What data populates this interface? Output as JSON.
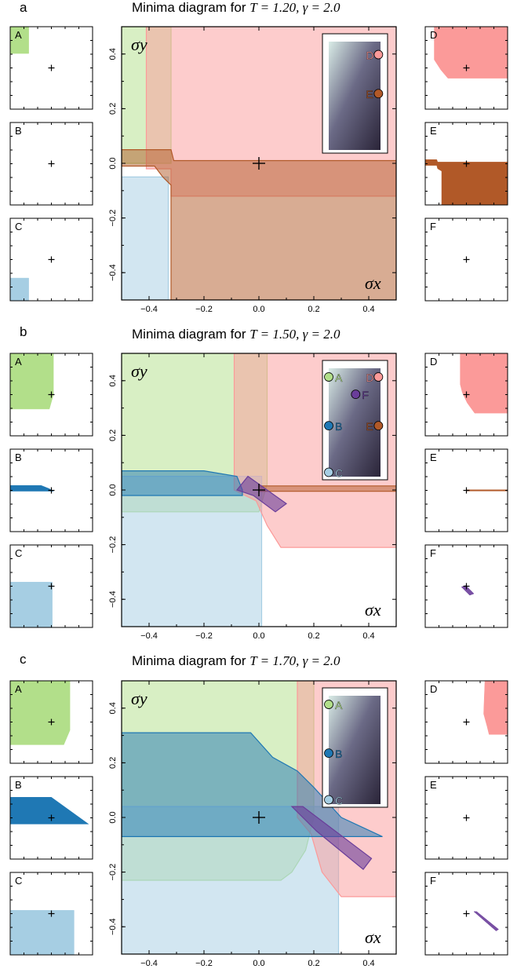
{
  "figure": {
    "colors": {
      "A": "#b2df8a",
      "B": "#1f78b4",
      "C": "#a6cee3",
      "D": "#fb9a99",
      "E": "#b15928",
      "F": "#6a3d9a"
    }
  },
  "chart_data": [
    {
      "panel": "a",
      "type": "area",
      "title_prefix": "Minima diagram for ",
      "title_math": "T = 1.20, γ = 2.0",
      "xlabel": "σx",
      "ylabel": "σy",
      "xlim": [
        -0.5,
        0.5
      ],
      "ylim": [
        -0.5,
        0.5
      ],
      "xticks": [
        -0.4,
        -0.2,
        0.0,
        0.2,
        0.4
      ],
      "yticks": [
        -0.4,
        -0.2,
        0.0,
        0.2,
        0.4
      ],
      "xtick_labels": [
        "−0.4",
        "−0.2",
        "0.0",
        "0.2",
        "0.4"
      ],
      "ytick_labels": [
        "−0.4",
        "−0.2",
        "0.0",
        "0.2",
        "0.4"
      ],
      "origin_marker": [
        0.0,
        0.0
      ],
      "regions": [
        {
          "label": "A",
          "polygon": [
            [
              -0.5,
              0.5
            ],
            [
              -0.32,
              0.5
            ],
            [
              -0.32,
              0.0
            ],
            [
              -0.5,
              0.0
            ]
          ]
        },
        {
          "label": "C",
          "polygon": [
            [
              -0.5,
              -0.5
            ],
            [
              -0.33,
              -0.5
            ],
            [
              -0.33,
              -0.05
            ],
            [
              -0.5,
              -0.05
            ]
          ]
        },
        {
          "label": "D",
          "polygon": [
            [
              -0.41,
              0.5
            ],
            [
              0.5,
              0.5
            ],
            [
              0.5,
              -0.12
            ],
            [
              -0.32,
              -0.12
            ],
            [
              -0.32,
              -0.02
            ],
            [
              -0.41,
              -0.02
            ]
          ]
        },
        {
          "label": "E",
          "polygon": [
            [
              -0.5,
              0.05
            ],
            [
              -0.32,
              0.05
            ],
            [
              -0.31,
              0.01
            ],
            [
              0.5,
              0.01
            ],
            [
              0.5,
              -0.5
            ],
            [
              -0.32,
              -0.5
            ],
            [
              -0.32,
              -0.08
            ],
            [
              -0.35,
              -0.05
            ],
            [
              -0.38,
              -0.01
            ],
            [
              -0.5,
              -0.01
            ]
          ]
        }
      ],
      "inset_markers": [
        {
          "label": "D",
          "pos": [
            0.96,
            0.88
          ]
        },
        {
          "label": "E",
          "pos": [
            0.96,
            0.52
          ]
        }
      ],
      "small_panels": [
        {
          "label": "A",
          "polygons": [
            [
              [
                -1,
                1
              ],
              [
                -0.55,
                1
              ],
              [
                -0.55,
                0.35
              ],
              [
                -1,
                0.35
              ]
            ]
          ]
        },
        {
          "label": "B",
          "polygons": []
        },
        {
          "label": "C",
          "polygons": [
            [
              [
                -1,
                -1
              ],
              [
                -0.55,
                -1
              ],
              [
                -0.55,
                -0.45
              ],
              [
                -1,
                -0.45
              ]
            ]
          ]
        },
        {
          "label": "D",
          "polygons": [
            [
              [
                -0.78,
                1
              ],
              [
                1,
                1
              ],
              [
                1,
                -0.25
              ],
              [
                -0.45,
                -0.25
              ],
              [
                -0.62,
                -0.05
              ],
              [
                -0.78,
                0.2
              ]
            ]
          ]
        },
        {
          "label": "E",
          "polygons": [
            [
              [
                -1,
                0.1
              ],
              [
                -0.72,
                0.1
              ],
              [
                -0.7,
                0.04
              ],
              [
                1,
                0.04
              ],
              [
                1,
                -1
              ],
              [
                -0.6,
                -1
              ],
              [
                -0.6,
                -0.18
              ],
              [
                -0.7,
                -0.12
              ],
              [
                -0.72,
                -0.04
              ],
              [
                -1,
                -0.04
              ]
            ]
          ]
        },
        {
          "label": "F",
          "polygons": []
        }
      ]
    },
    {
      "panel": "b",
      "type": "area",
      "title_prefix": "Minima diagram for ",
      "title_math": "T = 1.50, γ = 2.0",
      "xlabel": "σx",
      "ylabel": "σy",
      "xlim": [
        -0.5,
        0.5
      ],
      "ylim": [
        -0.5,
        0.5
      ],
      "xticks": [
        -0.4,
        -0.2,
        0.0,
        0.2,
        0.4
      ],
      "yticks": [
        -0.4,
        -0.2,
        0.0,
        0.2,
        0.4
      ],
      "xtick_labels": [
        "−0.4",
        "−0.2",
        "0.0",
        "0.2",
        "0.4"
      ],
      "ytick_labels": [
        "−0.4",
        "−0.2",
        "0.0",
        "0.2",
        "0.4"
      ],
      "origin_marker": [
        0.0,
        0.0
      ],
      "regions": [
        {
          "label": "A",
          "polygon": [
            [
              -0.5,
              0.5
            ],
            [
              0.03,
              0.5
            ],
            [
              0.03,
              0.02
            ],
            [
              0.0,
              -0.08
            ],
            [
              -0.5,
              -0.08
            ]
          ]
        },
        {
          "label": "C",
          "polygon": [
            [
              -0.5,
              -0.5
            ],
            [
              0.01,
              -0.5
            ],
            [
              0.01,
              0.05
            ],
            [
              -0.5,
              0.05
            ]
          ]
        },
        {
          "label": "D",
          "polygon": [
            [
              -0.09,
              0.5
            ],
            [
              0.5,
              0.5
            ],
            [
              0.5,
              -0.21
            ],
            [
              0.08,
              -0.21
            ],
            [
              0.03,
              -0.13
            ],
            [
              -0.01,
              -0.04
            ],
            [
              -0.09,
              0.0
            ]
          ]
        },
        {
          "label": "E",
          "polygon": [
            [
              0.0,
              0.015
            ],
            [
              0.5,
              0.015
            ],
            [
              0.5,
              -0.005
            ],
            [
              0.0,
              -0.005
            ]
          ]
        },
        {
          "label": "B",
          "polygon": [
            [
              -0.5,
              0.07
            ],
            [
              -0.2,
              0.07
            ],
            [
              -0.08,
              0.05
            ],
            [
              -0.06,
              0.0
            ],
            [
              -0.06,
              -0.02
            ],
            [
              -0.5,
              -0.02
            ]
          ]
        },
        {
          "label": "F",
          "polygon": [
            [
              -0.08,
              0.0
            ],
            [
              -0.04,
              0.05
            ],
            [
              0.1,
              -0.05
            ],
            [
              0.06,
              -0.08
            ],
            [
              -0.02,
              -0.02
            ]
          ]
        }
      ],
      "inset_markers": [
        {
          "label": "A",
          "pos": [
            0.0,
            0.92
          ]
        },
        {
          "label": "D",
          "pos": [
            0.96,
            0.92
          ]
        },
        {
          "label": "F",
          "pos": [
            0.52,
            0.76
          ]
        },
        {
          "label": "B",
          "pos": [
            0.0,
            0.47
          ]
        },
        {
          "label": "E",
          "pos": [
            0.96,
            0.47
          ]
        },
        {
          "label": "C",
          "pos": [
            0.0,
            0.04
          ]
        }
      ],
      "small_panels": [
        {
          "label": "A",
          "polygons": [
            [
              [
                -1,
                1
              ],
              [
                0.05,
                1
              ],
              [
                0.05,
                0.0
              ],
              [
                -0.05,
                -0.35
              ],
              [
                -1,
                -0.35
              ]
            ]
          ]
        },
        {
          "label": "B",
          "polygons": [
            [
              [
                -1,
                0.12
              ],
              [
                -0.25,
                0.12
              ],
              [
                -0.05,
                0.04
              ],
              [
                0.05,
                -0.02
              ],
              [
                -1,
                -0.02
              ]
            ]
          ]
        },
        {
          "label": "C",
          "polygons": [
            [
              [
                -1,
                -1
              ],
              [
                0.02,
                -1
              ],
              [
                0.02,
                0.1
              ],
              [
                -1,
                0.1
              ]
            ]
          ]
        },
        {
          "label": "D",
          "polygons": [
            [
              [
                -0.15,
                1
              ],
              [
                1,
                1
              ],
              [
                1,
                -0.45
              ],
              [
                0.2,
                -0.45
              ],
              [
                0.02,
                -0.2
              ],
              [
                -0.1,
                0.05
              ],
              [
                -0.15,
                0.25
              ]
            ]
          ]
        },
        {
          "label": "E",
          "polygons": [
            [
              [
                0.0,
                0.01
              ],
              [
                1,
                0.01
              ],
              [
                1,
                -0.01
              ],
              [
                0.0,
                -0.01
              ]
            ]
          ]
        },
        {
          "label": "F",
          "polygons": [
            [
              [
                -0.12,
                -0.02
              ],
              [
                -0.02,
                0.02
              ],
              [
                0.18,
                -0.18
              ],
              [
                0.08,
                -0.22
              ]
            ]
          ]
        }
      ]
    },
    {
      "panel": "c",
      "type": "area",
      "title_prefix": "Minima diagram for ",
      "title_math": "T = 1.70, γ = 2.0",
      "xlabel": "σx",
      "ylabel": "σy",
      "xlim": [
        -0.5,
        0.5
      ],
      "ylim": [
        -0.5,
        0.5
      ],
      "xticks": [
        -0.4,
        -0.2,
        0.0,
        0.2,
        0.4
      ],
      "yticks": [
        -0.4,
        -0.2,
        0.0,
        0.2,
        0.4
      ],
      "xtick_labels": [
        "−0.4",
        "−0.2",
        "0.0",
        "0.2",
        "0.4"
      ],
      "ytick_labels": [
        "−0.4",
        "−0.2",
        "0.0",
        "0.2",
        "0.4"
      ],
      "origin_marker": [
        0.0,
        0.0
      ],
      "regions": [
        {
          "label": "A",
          "polygon": [
            [
              -0.5,
              0.5
            ],
            [
              0.2,
              0.5
            ],
            [
              0.2,
              0.0
            ],
            [
              0.17,
              -0.12
            ],
            [
              0.12,
              -0.2
            ],
            [
              0.08,
              -0.23
            ],
            [
              -0.5,
              -0.23
            ]
          ]
        },
        {
          "label": "C",
          "polygon": [
            [
              -0.5,
              -0.5
            ],
            [
              0.29,
              -0.5
            ],
            [
              0.29,
              0.04
            ],
            [
              -0.5,
              0.04
            ]
          ]
        },
        {
          "label": "D",
          "polygon": [
            [
              0.14,
              0.5
            ],
            [
              0.5,
              0.5
            ],
            [
              0.5,
              -0.29
            ],
            [
              0.3,
              -0.29
            ],
            [
              0.23,
              -0.2
            ],
            [
              0.19,
              -0.06
            ],
            [
              0.14,
              0.0
            ]
          ]
        },
        {
          "label": "B",
          "polygon": [
            [
              -0.5,
              0.31
            ],
            [
              -0.03,
              0.31
            ],
            [
              0.05,
              0.22
            ],
            [
              0.14,
              0.17
            ],
            [
              0.2,
              0.11
            ],
            [
              0.3,
              0.0
            ],
            [
              0.45,
              -0.07
            ],
            [
              -0.5,
              -0.07
            ]
          ]
        },
        {
          "label": "F",
          "polygon": [
            [
              0.12,
              0.04
            ],
            [
              0.16,
              0.04
            ],
            [
              0.41,
              -0.15
            ],
            [
              0.38,
              -0.19
            ],
            [
              0.21,
              -0.05
            ]
          ]
        }
      ],
      "inset_markers": [
        {
          "label": "A",
          "pos": [
            0.0,
            0.92
          ]
        },
        {
          "label": "B",
          "pos": [
            0.0,
            0.47
          ]
        },
        {
          "label": "C",
          "pos": [
            0.0,
            0.04
          ]
        }
      ],
      "small_panels": [
        {
          "label": "A",
          "polygons": [
            [
              [
                -1,
                1
              ],
              [
                0.45,
                1
              ],
              [
                0.45,
                -0.2
              ],
              [
                0.3,
                -0.55
              ],
              [
                -1,
                -0.55
              ]
            ]
          ]
        },
        {
          "label": "B",
          "polygons": [
            [
              [
                -1,
                0.5
              ],
              [
                0.0,
                0.5
              ],
              [
                0.9,
                -0.15
              ],
              [
                -1,
                -0.15
              ]
            ]
          ]
        },
        {
          "label": "C",
          "polygons": [
            [
              [
                -1,
                -1
              ],
              [
                0.55,
                -1
              ],
              [
                0.55,
                0.08
              ],
              [
                -1,
                0.08
              ]
            ]
          ]
        },
        {
          "label": "D",
          "polygons": [
            [
              [
                0.45,
                1
              ],
              [
                1,
                1
              ],
              [
                1,
                -0.3
              ],
              [
                0.55,
                -0.3
              ],
              [
                0.5,
                -0.1
              ],
              [
                0.42,
                0.2
              ]
            ]
          ]
        },
        {
          "label": "E",
          "polygons": []
        },
        {
          "label": "F",
          "polygons": [
            [
              [
                0.18,
                0.05
              ],
              [
                0.25,
                0.05
              ],
              [
                0.78,
                -0.38
              ],
              [
                0.72,
                -0.42
              ]
            ]
          ]
        }
      ]
    }
  ]
}
